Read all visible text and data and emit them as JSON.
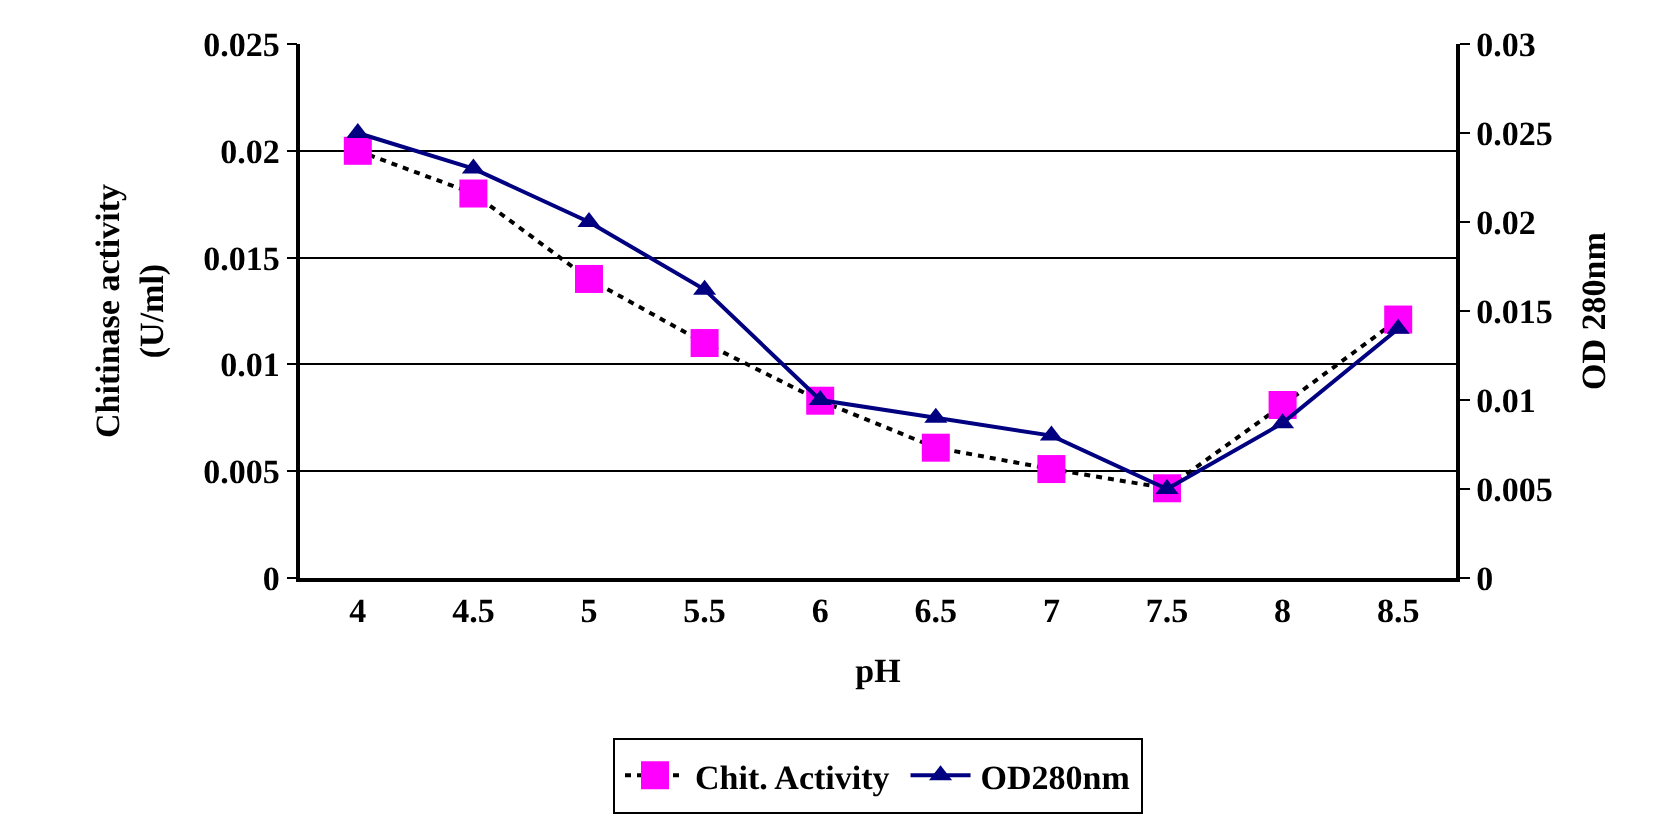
{
  "chart_data": {
    "type": "line",
    "xlabel": "pH",
    "ylabel": "Chitinase activity (U/ml)",
    "y2label": "OD 280nm",
    "categories": [
      "4",
      "4.5",
      "5",
      "5.5",
      "6",
      "6.5",
      "7",
      "7.5",
      "8",
      "8.5"
    ],
    "series": [
      {
        "name": "Chit. Activity",
        "color": "#ff00ff",
        "marker": "square",
        "line_style": "dotted",
        "values": [
          0.02,
          0.018,
          0.014,
          0.011,
          0.0083,
          0.0061,
          0.0051,
          0.0042,
          0.0081,
          0.0121
        ]
      },
      {
        "name": "OD280nm",
        "color": "#000080",
        "marker": "triangle",
        "line_style": "solid",
        "axis": "y2",
        "values": [
          0.025,
          0.023,
          0.02,
          0.0162,
          0.01,
          0.009,
          0.008,
          0.005,
          0.0087,
          0.014
        ]
      }
    ],
    "ylim": [
      0,
      0.025
    ],
    "yticks": [
      0,
      0.005,
      0.01,
      0.015,
      0.02,
      0.025
    ],
    "y2lim": [
      0,
      0.03
    ],
    "y2ticks": [
      0,
      0.005,
      0.01,
      0.015,
      0.02,
      0.025,
      0.03
    ],
    "grid": "y",
    "legend": "bottom"
  }
}
